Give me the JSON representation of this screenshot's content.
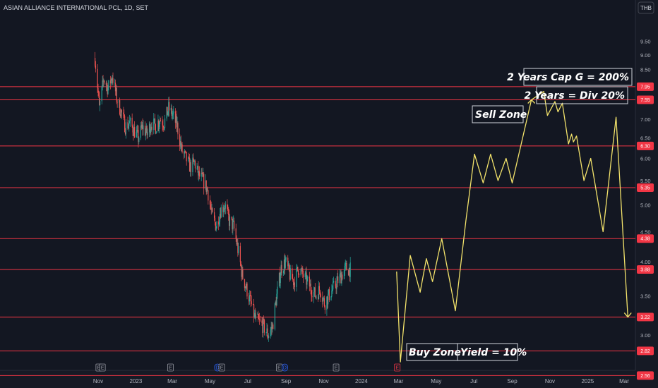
{
  "header": {
    "symbol_title": "ASIAN ALLIANCE INTERNATIONAL PCL, 1D, SET",
    "currency": "THB"
  },
  "colors": {
    "background": "#161a25",
    "candle_up": "#26a69a",
    "candle_down": "#ef5350",
    "level_line": "#f23645",
    "projection": "#f3e36b",
    "axis_text": "#b2b5be",
    "annotation_border": "#d1d4dc"
  },
  "chart_data": {
    "type": "candlestick",
    "y_axis": {
      "scale": "log",
      "ticks": [
        3.0,
        3.5,
        4.0,
        4.5,
        5.0,
        5.5,
        6.0,
        6.5,
        7.0,
        7.5,
        8.0,
        8.5,
        9.0,
        9.5
      ],
      "tick_labels": [
        "3.00",
        "3.50",
        "4.00",
        "4.50",
        "5.00",
        "5.50",
        "6.00",
        "6.50",
        "7.00",
        "7.50",
        "8.00",
        "8.50",
        "9.00",
        "9.50"
      ]
    },
    "x_axis": {
      "tick_labels": [
        "Nov",
        "2023",
        "Mar",
        "May",
        "Jul",
        "Sep",
        "Nov",
        "2024",
        "Mar",
        "May",
        "Jul",
        "Sep",
        "Nov",
        "2025",
        "Mar"
      ],
      "tick_dates": [
        "2022-11-01",
        "2023-01-01",
        "2023-03-01",
        "2023-05-01",
        "2023-07-01",
        "2023-09-01",
        "2023-11-01",
        "2024-01-01",
        "2024-03-01",
        "2024-05-01",
        "2024-07-01",
        "2024-09-01",
        "2024-11-01",
        "2025-01-01",
        "2025-03-01"
      ]
    },
    "price_path": [
      [
        "2022-10-27",
        8.9
      ],
      [
        "2022-11-03",
        7.3
      ],
      [
        "2022-11-10",
        8.2
      ],
      [
        "2022-11-17",
        7.9
      ],
      [
        "2022-11-24",
        8.3
      ],
      [
        "2022-12-01",
        7.6
      ],
      [
        "2022-12-08",
        7.2
      ],
      [
        "2022-12-15",
        6.8
      ],
      [
        "2022-12-22",
        6.9
      ],
      [
        "2022-12-29",
        6.7
      ],
      [
        "2023-01-05",
        6.5
      ],
      [
        "2023-01-12",
        6.8
      ],
      [
        "2023-01-19",
        6.6
      ],
      [
        "2023-01-26",
        6.9
      ],
      [
        "2023-02-02",
        6.8
      ],
      [
        "2023-02-09",
        7.0
      ],
      [
        "2023-02-16",
        6.9
      ],
      [
        "2023-02-23",
        7.3
      ],
      [
        "2023-03-02",
        7.1
      ],
      [
        "2023-03-09",
        6.8
      ],
      [
        "2023-03-16",
        6.2
      ],
      [
        "2023-03-23",
        6.0
      ],
      [
        "2023-03-30",
        5.8
      ],
      [
        "2023-04-06",
        5.9
      ],
      [
        "2023-04-13",
        5.6
      ],
      [
        "2023-04-20",
        5.5
      ],
      [
        "2023-04-27",
        5.3
      ],
      [
        "2023-05-04",
        4.8
      ],
      [
        "2023-05-11",
        4.6
      ],
      [
        "2023-05-18",
        4.9
      ],
      [
        "2023-05-25",
        5.0
      ],
      [
        "2023-06-01",
        4.7
      ],
      [
        "2023-06-08",
        4.6
      ],
      [
        "2023-06-15",
        4.2
      ],
      [
        "2023-06-22",
        3.8
      ],
      [
        "2023-06-29",
        3.6
      ],
      [
        "2023-07-06",
        3.4
      ],
      [
        "2023-07-13",
        3.2
      ],
      [
        "2023-07-20",
        3.15
      ],
      [
        "2023-07-27",
        3.1
      ],
      [
        "2023-08-03",
        3.0
      ],
      [
        "2023-08-10",
        3.1
      ],
      [
        "2023-08-17",
        3.5
      ],
      [
        "2023-08-24",
        3.9
      ],
      [
        "2023-08-31",
        4.0
      ],
      [
        "2023-09-07",
        3.8
      ],
      [
        "2023-09-14",
        3.7
      ],
      [
        "2023-09-21",
        3.9
      ],
      [
        "2023-09-28",
        3.8
      ],
      [
        "2023-10-05",
        3.7
      ],
      [
        "2023-10-12",
        3.6
      ],
      [
        "2023-10-19",
        3.5
      ],
      [
        "2023-10-26",
        3.6
      ],
      [
        "2023-11-02",
        3.4
      ],
      [
        "2023-11-09",
        3.5
      ],
      [
        "2023-11-16",
        3.6
      ],
      [
        "2023-11-23",
        3.7
      ],
      [
        "2023-11-30",
        3.8
      ],
      [
        "2023-12-07",
        3.9
      ],
      [
        "2023-12-14",
        3.88
      ]
    ],
    "horizontal_levels": [
      {
        "value": 7.95,
        "label": "7.95"
      },
      {
        "value": 7.55,
        "label": "7.55"
      },
      {
        "value": 6.3,
        "label": "6.30"
      },
      {
        "value": 5.35,
        "label": "5.35"
      },
      {
        "value": 4.38,
        "label": "4.38"
      },
      {
        "value": 3.88,
        "label": "3.88"
      },
      {
        "value": 3.22,
        "label": "3.22"
      },
      {
        "value": 2.82,
        "label": "2.82"
      },
      {
        "value": 2.56,
        "label": "2.56"
      }
    ],
    "projection_path": [
      [
        "2024-02-27",
        3.85
      ],
      [
        "2024-03-04",
        2.7
      ],
      [
        "2024-03-20",
        4.1
      ],
      [
        "2024-04-05",
        3.55
      ],
      [
        "2024-04-15",
        4.05
      ],
      [
        "2024-04-25",
        3.7
      ],
      [
        "2024-05-10",
        4.38
      ],
      [
        "2024-06-01",
        3.3
      ],
      [
        "2024-06-18",
        4.7
      ],
      [
        "2024-07-02",
        6.1
      ],
      [
        "2024-07-16",
        5.45
      ],
      [
        "2024-07-28",
        6.1
      ],
      [
        "2024-08-09",
        5.5
      ],
      [
        "2024-08-22",
        6.0
      ],
      [
        "2024-09-01",
        5.45
      ],
      [
        "2024-10-02",
        7.55
      ],
      [
        "2024-10-22",
        7.8
      ],
      [
        "2024-10-28",
        7.1
      ],
      [
        "2024-11-09",
        7.5
      ],
      [
        "2024-11-14",
        7.2
      ],
      [
        "2024-11-21",
        7.45
      ],
      [
        "2024-12-01",
        6.35
      ],
      [
        "2024-12-06",
        6.6
      ],
      [
        "2024-12-09",
        6.4
      ],
      [
        "2024-12-14",
        6.55
      ],
      [
        "2024-12-26",
        5.5
      ],
      [
        "2025-01-06",
        6.0
      ],
      [
        "2025-01-26",
        4.5
      ],
      [
        "2025-02-16",
        7.05
      ],
      [
        "2025-03-07",
        3.22
      ]
    ],
    "annotations": [
      {
        "text": "2 Years Cap G = 200%"
      },
      {
        "text": "2 Years = Div 20%"
      },
      {
        "text": "Sell Zone"
      },
      {
        "text": "Buy Zone"
      },
      {
        "text": "Yield = 10%"
      }
    ],
    "event_markers": [
      {
        "date": "2022-11-02",
        "label": "E"
      },
      {
        "date": "2022-11-08",
        "label": "E"
      },
      {
        "date": "2023-02-26",
        "label": "E"
      },
      {
        "date": "2023-05-13",
        "label": "D"
      },
      {
        "date": "2023-05-20",
        "label": "E"
      },
      {
        "date": "2023-08-21",
        "label": "E"
      },
      {
        "date": "2023-08-30",
        "label": "D"
      },
      {
        "date": "2023-11-21",
        "label": "E"
      },
      {
        "date": "2024-02-28",
        "label": "E"
      }
    ],
    "grid": false
  }
}
